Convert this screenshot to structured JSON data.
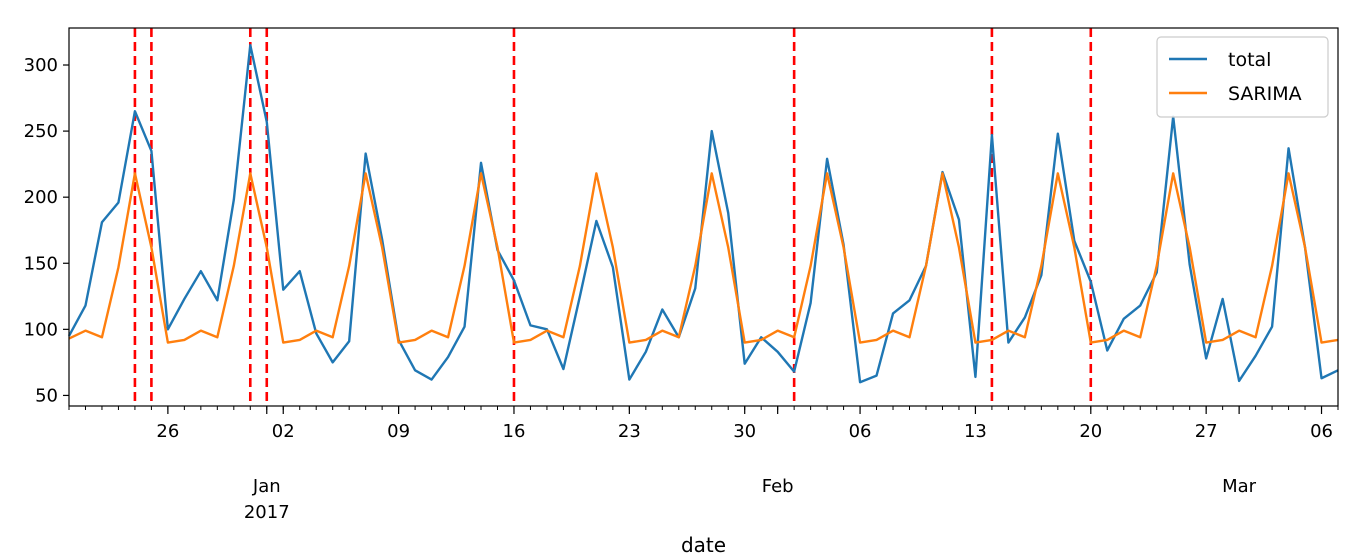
{
  "chart_data": {
    "type": "line",
    "xlabel": "date",
    "ylabel": "",
    "x_start": "2016-12-20",
    "x_end": "2017-03-07",
    "ylim": [
      42,
      328
    ],
    "yticks": [
      50,
      100,
      150,
      200,
      250,
      300
    ],
    "x_day_ticks": [
      {
        "date": "2016-12-26",
        "label": "26"
      },
      {
        "date": "2017-01-02",
        "label": "02"
      },
      {
        "date": "2017-01-09",
        "label": "09"
      },
      {
        "date": "2017-01-16",
        "label": "16"
      },
      {
        "date": "2017-01-23",
        "label": "23"
      },
      {
        "date": "2017-01-30",
        "label": "30"
      },
      {
        "date": "2017-02-06",
        "label": "06"
      },
      {
        "date": "2017-02-13",
        "label": "13"
      },
      {
        "date": "2017-02-20",
        "label": "20"
      },
      {
        "date": "2017-02-27",
        "label": "27"
      },
      {
        "date": "2017-03-06",
        "label": "06"
      }
    ],
    "x_month_ticks": [
      {
        "date": "2017-01-01",
        "label": "Jan",
        "sublabel": "2017"
      },
      {
        "date": "2017-02-01",
        "label": "Feb",
        "sublabel": ""
      },
      {
        "date": "2017-03-01",
        "label": "Mar",
        "sublabel": ""
      }
    ],
    "series": [
      {
        "name": "total",
        "color": "#1f77b4",
        "start": "2016-12-20",
        "values": [
          95,
          118,
          181,
          196,
          265,
          235,
          100,
          123,
          144,
          122,
          198,
          315,
          257,
          130,
          144,
          97,
          75,
          91,
          233,
          168,
          92,
          69,
          62,
          79,
          102,
          226,
          160,
          137,
          103,
          100,
          70,
          125,
          182,
          147,
          62,
          83,
          115,
          94,
          131,
          250,
          188,
          74,
          94,
          83,
          68,
          120,
          229,
          164,
          60,
          65,
          112,
          122,
          148,
          219,
          183,
          64,
          247,
          90,
          109,
          141,
          248,
          167,
          136,
          84,
          108,
          118,
          143,
          261,
          149,
          78,
          123,
          61,
          80,
          102,
          237,
          162,
          63,
          69
        ]
      },
      {
        "name": "SARIMA",
        "color": "#ff7f0e",
        "start": "2016-12-20",
        "values": [
          93,
          99,
          94,
          147,
          218,
          162,
          90,
          92,
          99,
          94,
          148,
          218,
          162,
          90,
          92,
          99,
          94,
          148,
          218,
          162,
          90,
          92,
          99,
          94,
          148,
          218,
          162,
          90,
          92,
          99,
          94,
          148,
          218,
          162,
          90,
          92,
          99,
          94,
          148,
          218,
          162,
          90,
          92,
          99,
          94,
          148,
          218,
          162,
          90,
          92,
          99,
          94,
          148,
          218,
          162,
          90,
          92,
          99,
          94,
          148,
          218,
          162,
          90,
          92,
          99,
          94,
          148,
          218,
          162,
          90,
          92,
          99,
          94,
          148,
          218,
          162,
          90,
          92
        ]
      }
    ],
    "vlines": {
      "color": "#ff0000",
      "style": "dashed",
      "dates": [
        "2016-12-24",
        "2016-12-25",
        "2016-12-31",
        "2017-01-01",
        "2017-01-16",
        "2017-02-02",
        "2017-02-14",
        "2017-02-20"
      ]
    },
    "legend": {
      "position": "top-right",
      "entries": [
        "total",
        "SARIMA"
      ]
    },
    "grid": false
  }
}
